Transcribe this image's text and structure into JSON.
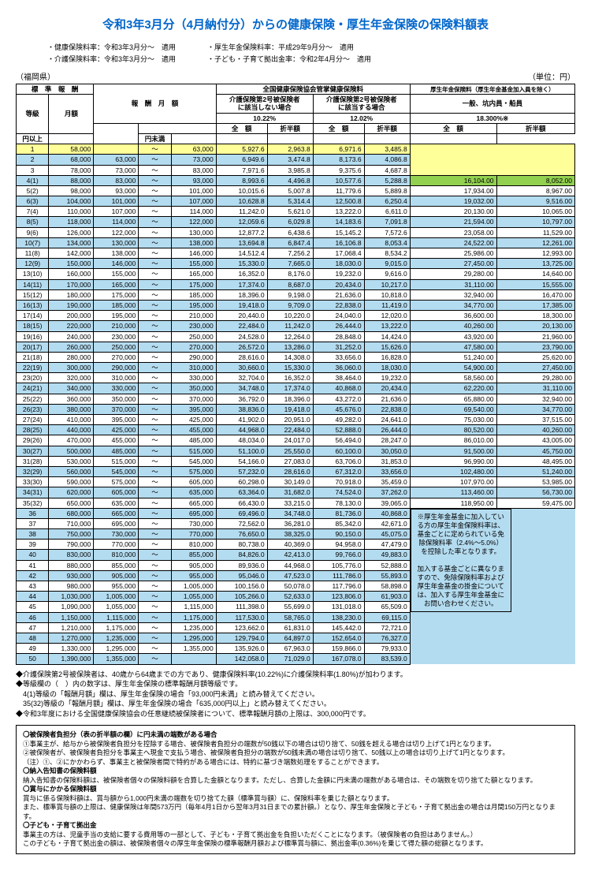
{
  "title": "令和3年3月分（4月納付分）からの健康保険・厚生年金保険の保険料額表",
  "sub1": "・健康保険料率：令和3年3月分～　適用",
  "sub2": "・厚生年金保険料率：平成29年9月分～　適用",
  "sub3": "・介護保険料率：令和3年3月分～　適用",
  "sub4": "・子ども・子育て拠出金率：令和2年4月分～　適用",
  "region": "（福岡県）",
  "unit": "（単位：円）",
  "hdr_std": "標　準　報　酬",
  "hdr_range": "報　酬　月　額",
  "hdr_health": "全国健康保険協会管掌健康保険料",
  "hdr_pension": "厚生年金保険料（厚生年金基金加入員を除く）",
  "hdr_care_no": "介護保険第2号被保険者\nに該当しない場合",
  "hdr_care_yes": "介護保険第2号被保険者\nに該当する場合",
  "hdr_general": "一般、坑内員・船員",
  "rate1": "10.22%",
  "rate2": "12.02%",
  "rate3": "18.300%※",
  "col_grade": "等級",
  "col_month": "月額",
  "col_full": "全　額",
  "col_half": "折半額",
  "col_above": "円以上",
  "col_below": "円未満",
  "tilde": "～",
  "rows": [
    {
      "g": "1",
      "m": "58,000",
      "lo": "",
      "hi": "63,000",
      "a": "5,927.6",
      "b": "2,963.8",
      "c": "6,971.6",
      "d": "3,485.8",
      "e": "",
      "f": "",
      "cls": "yellow"
    },
    {
      "g": "2",
      "m": "68,000",
      "lo": "63,000",
      "hi": "73,000",
      "a": "6,949.6",
      "b": "3,474.8",
      "c": "8,173.6",
      "d": "4,086.8",
      "e": "",
      "f": "",
      "cls": "blue"
    },
    {
      "g": "3",
      "m": "78,000",
      "lo": "73,000",
      "hi": "83,000",
      "a": "7,971.6",
      "b": "3,985.8",
      "c": "9,375.6",
      "d": "4,687.8",
      "e": "",
      "f": ""
    },
    {
      "g": "4(1)",
      "m": "88,000",
      "lo": "83,000",
      "hi": "93,000",
      "a": "8,993.6",
      "b": "4,496.8",
      "c": "10,577.6",
      "d": "5,288.8",
      "e": "16,104.00",
      "f": "8,052.00",
      "cls": "blue green-row"
    },
    {
      "g": "5(2)",
      "m": "98,000",
      "lo": "93,000",
      "hi": "101,000",
      "a": "10,015.6",
      "b": "5,007.8",
      "c": "11,779.6",
      "d": "5,889.8",
      "e": "17,934.00",
      "f": "8,967.00"
    },
    {
      "g": "6(3)",
      "m": "104,000",
      "lo": "101,000",
      "hi": "107,000",
      "a": "10,628.8",
      "b": "5,314.4",
      "c": "12,500.8",
      "d": "6,250.4",
      "e": "19,032.00",
      "f": "9,516.00",
      "cls": "blue"
    },
    {
      "g": "7(4)",
      "m": "110,000",
      "lo": "107,000",
      "hi": "114,000",
      "a": "11,242.0",
      "b": "5,621.0",
      "c": "13,222.0",
      "d": "6,611.0",
      "e": "20,130.00",
      "f": "10,065.00"
    },
    {
      "g": "8(5)",
      "m": "118,000",
      "lo": "114,000",
      "hi": "122,000",
      "a": "12,059.6",
      "b": "6,029.8",
      "c": "14,183.6",
      "d": "7,091.8",
      "e": "21,594.00",
      "f": "10,797.00",
      "cls": "blue"
    },
    {
      "g": "9(6)",
      "m": "126,000",
      "lo": "122,000",
      "hi": "130,000",
      "a": "12,877.2",
      "b": "6,438.6",
      "c": "15,145.2",
      "d": "7,572.6",
      "e": "23,058.00",
      "f": "11,529.00"
    },
    {
      "g": "10(7)",
      "m": "134,000",
      "lo": "130,000",
      "hi": "138,000",
      "a": "13,694.8",
      "b": "6,847.4",
      "c": "16,106.8",
      "d": "8,053.4",
      "e": "24,522.00",
      "f": "12,261.00",
      "cls": "blue"
    },
    {
      "g": "11(8)",
      "m": "142,000",
      "lo": "138,000",
      "hi": "146,000",
      "a": "14,512.4",
      "b": "7,256.2",
      "c": "17,068.4",
      "d": "8,534.2",
      "e": "25,986.00",
      "f": "12,993.00"
    },
    {
      "g": "12(9)",
      "m": "150,000",
      "lo": "146,000",
      "hi": "155,000",
      "a": "15,330.0",
      "b": "7,665.0",
      "c": "18,030.0",
      "d": "9,015.0",
      "e": "27,450.00",
      "f": "13,725.00",
      "cls": "blue"
    },
    {
      "g": "13(10)",
      "m": "160,000",
      "lo": "155,000",
      "hi": "165,000",
      "a": "16,352.0",
      "b": "8,176.0",
      "c": "19,232.0",
      "d": "9,616.0",
      "e": "29,280.00",
      "f": "14,640.00"
    },
    {
      "g": "14(11)",
      "m": "170,000",
      "lo": "165,000",
      "hi": "175,000",
      "a": "17,374.0",
      "b": "8,687.0",
      "c": "20,434.0",
      "d": "10,217.0",
      "e": "31,110.00",
      "f": "15,555.00",
      "cls": "blue"
    },
    {
      "g": "15(12)",
      "m": "180,000",
      "lo": "175,000",
      "hi": "185,000",
      "a": "18,396.0",
      "b": "9,198.0",
      "c": "21,636.0",
      "d": "10,818.0",
      "e": "32,940.00",
      "f": "16,470.00"
    },
    {
      "g": "16(13)",
      "m": "190,000",
      "lo": "185,000",
      "hi": "195,000",
      "a": "19,418.0",
      "b": "9,709.0",
      "c": "22,838.0",
      "d": "11,419.0",
      "e": "34,770.00",
      "f": "17,385.00",
      "cls": "blue"
    },
    {
      "g": "17(14)",
      "m": "200,000",
      "lo": "195,000",
      "hi": "210,000",
      "a": "20,440.0",
      "b": "10,220.0",
      "c": "24,040.0",
      "d": "12,020.0",
      "e": "36,600.00",
      "f": "18,300.00"
    },
    {
      "g": "18(15)",
      "m": "220,000",
      "lo": "210,000",
      "hi": "230,000",
      "a": "22,484.0",
      "b": "11,242.0",
      "c": "26,444.0",
      "d": "13,222.0",
      "e": "40,260.00",
      "f": "20,130.00",
      "cls": "blue"
    },
    {
      "g": "19(16)",
      "m": "240,000",
      "lo": "230,000",
      "hi": "250,000",
      "a": "24,528.0",
      "b": "12,264.0",
      "c": "28,848.0",
      "d": "14,424.0",
      "e": "43,920.00",
      "f": "21,960.00"
    },
    {
      "g": "20(17)",
      "m": "260,000",
      "lo": "250,000",
      "hi": "270,000",
      "a": "26,572.0",
      "b": "13,286.0",
      "c": "31,252.0",
      "d": "15,626.0",
      "e": "47,580.00",
      "f": "23,790.00",
      "cls": "blue"
    },
    {
      "g": "21(18)",
      "m": "280,000",
      "lo": "270,000",
      "hi": "290,000",
      "a": "28,616.0",
      "b": "14,308.0",
      "c": "33,656.0",
      "d": "16,828.0",
      "e": "51,240.00",
      "f": "25,620.00"
    },
    {
      "g": "22(19)",
      "m": "300,000",
      "lo": "290,000",
      "hi": "310,000",
      "a": "30,660.0",
      "b": "15,330.0",
      "c": "36,060.0",
      "d": "18,030.0",
      "e": "54,900.00",
      "f": "27,450.00",
      "cls": "blue"
    },
    {
      "g": "23(20)",
      "m": "320,000",
      "lo": "310,000",
      "hi": "330,000",
      "a": "32,704.0",
      "b": "16,352.0",
      "c": "38,464.0",
      "d": "19,232.0",
      "e": "58,560.00",
      "f": "29,280.00"
    },
    {
      "g": "24(21)",
      "m": "340,000",
      "lo": "330,000",
      "hi": "350,000",
      "a": "34,748.0",
      "b": "17,374.0",
      "c": "40,868.0",
      "d": "20,434.0",
      "e": "62,220.00",
      "f": "31,110.00",
      "cls": "blue"
    },
    {
      "g": "25(22)",
      "m": "360,000",
      "lo": "350,000",
      "hi": "370,000",
      "a": "36,792.0",
      "b": "18,396.0",
      "c": "43,272.0",
      "d": "21,636.0",
      "e": "65,880.00",
      "f": "32,940.00"
    },
    {
      "g": "26(23)",
      "m": "380,000",
      "lo": "370,000",
      "hi": "395,000",
      "a": "38,836.0",
      "b": "19,418.0",
      "c": "45,676.0",
      "d": "22,838.0",
      "e": "69,540.00",
      "f": "34,770.00",
      "cls": "blue"
    },
    {
      "g": "27(24)",
      "m": "410,000",
      "lo": "395,000",
      "hi": "425,000",
      "a": "41,902.0",
      "b": "20,951.0",
      "c": "49,282.0",
      "d": "24,641.0",
      "e": "75,030.00",
      "f": "37,515.00"
    },
    {
      "g": "28(25)",
      "m": "440,000",
      "lo": "425,000",
      "hi": "455,000",
      "a": "44,968.0",
      "b": "22,484.0",
      "c": "52,888.0",
      "d": "26,444.0",
      "e": "80,520.00",
      "f": "40,260.00",
      "cls": "blue"
    },
    {
      "g": "29(26)",
      "m": "470,000",
      "lo": "455,000",
      "hi": "485,000",
      "a": "48,034.0",
      "b": "24,017.0",
      "c": "56,494.0",
      "d": "28,247.0",
      "e": "86,010.00",
      "f": "43,005.00"
    },
    {
      "g": "30(27)",
      "m": "500,000",
      "lo": "485,000",
      "hi": "515,000",
      "a": "51,100.0",
      "b": "25,550.0",
      "c": "60,100.0",
      "d": "30,050.0",
      "e": "91,500.00",
      "f": "45,750.00",
      "cls": "blue"
    },
    {
      "g": "31(28)",
      "m": "530,000",
      "lo": "515,000",
      "hi": "545,000",
      "a": "54,166.0",
      "b": "27,083.0",
      "c": "63,706.0",
      "d": "31,853.0",
      "e": "96,990.00",
      "f": "48,495.00"
    },
    {
      "g": "32(29)",
      "m": "560,000",
      "lo": "545,000",
      "hi": "575,000",
      "a": "57,232.0",
      "b": "28,616.0",
      "c": "67,312.0",
      "d": "33,656.0",
      "e": "102,480.00",
      "f": "51,240.00",
      "cls": "blue"
    },
    {
      "g": "33(30)",
      "m": "590,000",
      "lo": "575,000",
      "hi": "605,000",
      "a": "60,298.0",
      "b": "30,149.0",
      "c": "70,918.0",
      "d": "35,459.0",
      "e": "107,970.00",
      "f": "53,985.00"
    },
    {
      "g": "34(31)",
      "m": "620,000",
      "lo": "605,000",
      "hi": "635,000",
      "a": "63,364.0",
      "b": "31,682.0",
      "c": "74,524.0",
      "d": "37,262.0",
      "e": "113,460.00",
      "f": "56,730.00",
      "cls": "blue"
    },
    {
      "g": "35(32)",
      "m": "650,000",
      "lo": "635,000",
      "hi": "665,000",
      "a": "66,430.0",
      "b": "33,215.0",
      "c": "78,130.0",
      "d": "39,065.0",
      "e": "118,950.00",
      "f": "59,475.00"
    },
    {
      "g": "36",
      "m": "680,000",
      "lo": "665,000",
      "hi": "695,000",
      "a": "69,496.0",
      "b": "34,748.0",
      "c": "81,736.0",
      "d": "40,868.0",
      "e": "",
      "f": "",
      "cls": "blue",
      "note": true
    },
    {
      "g": "37",
      "m": "710,000",
      "lo": "695,000",
      "hi": "730,000",
      "a": "72,562.0",
      "b": "36,281.0",
      "c": "85,342.0",
      "d": "42,671.0",
      "e": "",
      "f": ""
    },
    {
      "g": "38",
      "m": "750,000",
      "lo": "730,000",
      "hi": "770,000",
      "a": "76,650.0",
      "b": "38,325.0",
      "c": "90,150.0",
      "d": "45,075.0",
      "e": "",
      "f": "",
      "cls": "blue"
    },
    {
      "g": "39",
      "m": "790,000",
      "lo": "770,000",
      "hi": "810,000",
      "a": "80,738.0",
      "b": "40,369.0",
      "c": "94,958.0",
      "d": "47,479.0",
      "e": "",
      "f": ""
    },
    {
      "g": "40",
      "m": "830,000",
      "lo": "810,000",
      "hi": "855,000",
      "a": "84,826.0",
      "b": "42,413.0",
      "c": "99,766.0",
      "d": "49,883.0",
      "e": "",
      "f": "",
      "cls": "blue"
    },
    {
      "g": "41",
      "m": "880,000",
      "lo": "855,000",
      "hi": "905,000",
      "a": "89,936.0",
      "b": "44,968.0",
      "c": "105,776.0",
      "d": "52,888.0",
      "e": "",
      "f": ""
    },
    {
      "g": "42",
      "m": "930,000",
      "lo": "905,000",
      "hi": "955,000",
      "a": "95,046.0",
      "b": "47,523.0",
      "c": "111,786.0",
      "d": "55,893.0",
      "e": "",
      "f": "",
      "cls": "blue"
    },
    {
      "g": "43",
      "m": "980,000",
      "lo": "955,000",
      "hi": "1,005,000",
      "a": "100,156.0",
      "b": "50,078.0",
      "c": "117,796.0",
      "d": "58,898.0",
      "e": "",
      "f": ""
    },
    {
      "g": "44",
      "m": "1,030,000",
      "lo": "1,005,000",
      "hi": "1,055,000",
      "a": "105,266.0",
      "b": "52,633.0",
      "c": "123,806.0",
      "d": "61,903.0",
      "e": "",
      "f": "",
      "cls": "blue"
    },
    {
      "g": "45",
      "m": "1,090,000",
      "lo": "1,055,000",
      "hi": "1,115,000",
      "a": "111,398.0",
      "b": "55,699.0",
      "c": "131,018.0",
      "d": "65,509.0",
      "e": "",
      "f": ""
    },
    {
      "g": "46",
      "m": "1,150,000",
      "lo": "1,115,000",
      "hi": "1,175,000",
      "a": "117,530.0",
      "b": "58,765.0",
      "c": "138,230.0",
      "d": "69,115.0",
      "e": "",
      "f": "",
      "cls": "blue"
    },
    {
      "g": "47",
      "m": "1,210,000",
      "lo": "1,175,000",
      "hi": "1,235,000",
      "a": "123,662.0",
      "b": "61,831.0",
      "c": "145,442.0",
      "d": "72,721.0",
      "e": "",
      "f": ""
    },
    {
      "g": "48",
      "m": "1,270,000",
      "lo": "1,235,000",
      "hi": "1,295,000",
      "a": "129,794.0",
      "b": "64,897.0",
      "c": "152,654.0",
      "d": "76,327.0",
      "e": "",
      "f": "",
      "cls": "blue"
    },
    {
      "g": "49",
      "m": "1,330,000",
      "lo": "1,295,000",
      "hi": "1,355,000",
      "a": "135,926.0",
      "b": "67,963.0",
      "c": "159,866.0",
      "d": "79,933.0",
      "e": "",
      "f": ""
    },
    {
      "g": "50",
      "m": "1,390,000",
      "lo": "1,355,000",
      "hi": "",
      "a": "142,058.0",
      "b": "71,029.0",
      "c": "167,078.0",
      "d": "83,539.0",
      "e": "",
      "f": "",
      "cls": "blue"
    }
  ],
  "side_note": "※厚生年金基金に加入している方の厚生年金保険料率は、基金ごとに定められている免除保険料率（2.4%～5.0%）を控除した率となります。\n\n加入する基金ごとに異なりますので、免除保険料率および厚生年金基金の掛金については、加入する厚生年金基金にお問い合わせください。",
  "footer1": "◆介護保険第2号被保険者は、40歳から64歳までの方であり、健康保険料率(10.22%)に介護保険料率(1.80%)が加わります。",
  "footer2": "◆等級欄の（　）内の数字は、厚生年金保険の標準報酬月額等級です。",
  "footer3": "　4(1)等級の「報酬月額」欄は、厚生年金保険の場合「93,000円未満」と読み替えてください。",
  "footer4": "　35(32)等級の「報酬月額」欄は、厚生年金保険の場合「635,000円以上」と読み替えてください。",
  "footer5": "◆令和3年度における全国健康保険協会の任意継続被保険者について、標準報酬月額の上限は、300,000円です。",
  "box_h1": "〇被保険者負担分（表の折半額の欄）に円未満の端数がある場合",
  "box_l1": "①事業主が、給与から被保険者負担分を控除する場合、被保険者負担分の端数が50銭以下の場合は切り捨て、50銭を超える場合は切り上げて1円となります。",
  "box_l2": "②被保険者が、被保険者負担分を事業主へ現金で支払う場合、被保険者負担分の端数が50銭未満の場合は切り捨て、50銭以上の場合は切り上げて1円となります。",
  "box_l3": "（注）①、②にかかわらず、事業主と被保険者間で特約がある場合には、特約に基づき端数処理をすることができます。",
  "box_h2": "〇納入告知書の保険料額",
  "box_l4": "納入告知書の保険料額は、被保険者個々の保険料額を合算した金額となります。ただし、合算した金額に円未満の端数がある場合は、その端数を切り捨てた額となります。",
  "box_h3": "〇賞与にかかる保険料額",
  "box_l5": "賞与に係る保険料額は、賞与額から1,000円未満の端数を切り捨てた額（標準賞与額）に、保険料率を乗じた額となります。",
  "box_l6": "また、標準賞与額の上限は、健康保険は年間573万円（毎年4月1日から翌年3月31日までの累計額。）となり、厚生年金保険と子ども・子育て拠出金の場合は月間150万円となります。",
  "box_h4": "〇子ども・子育て拠出金",
  "box_l7": "事業主の方は、児童手当の支給に要する費用等の一部として、子ども・子育て拠出金を負担いただくことになります。（被保険者の負担はありません。）",
  "box_l8": "この子ども・子育て拠出金の額は、被保険者個々の厚生年金保険の標準報酬月額および標準賞与額に、拠出金率(0.36%)を乗じて得た額の総額となります。"
}
